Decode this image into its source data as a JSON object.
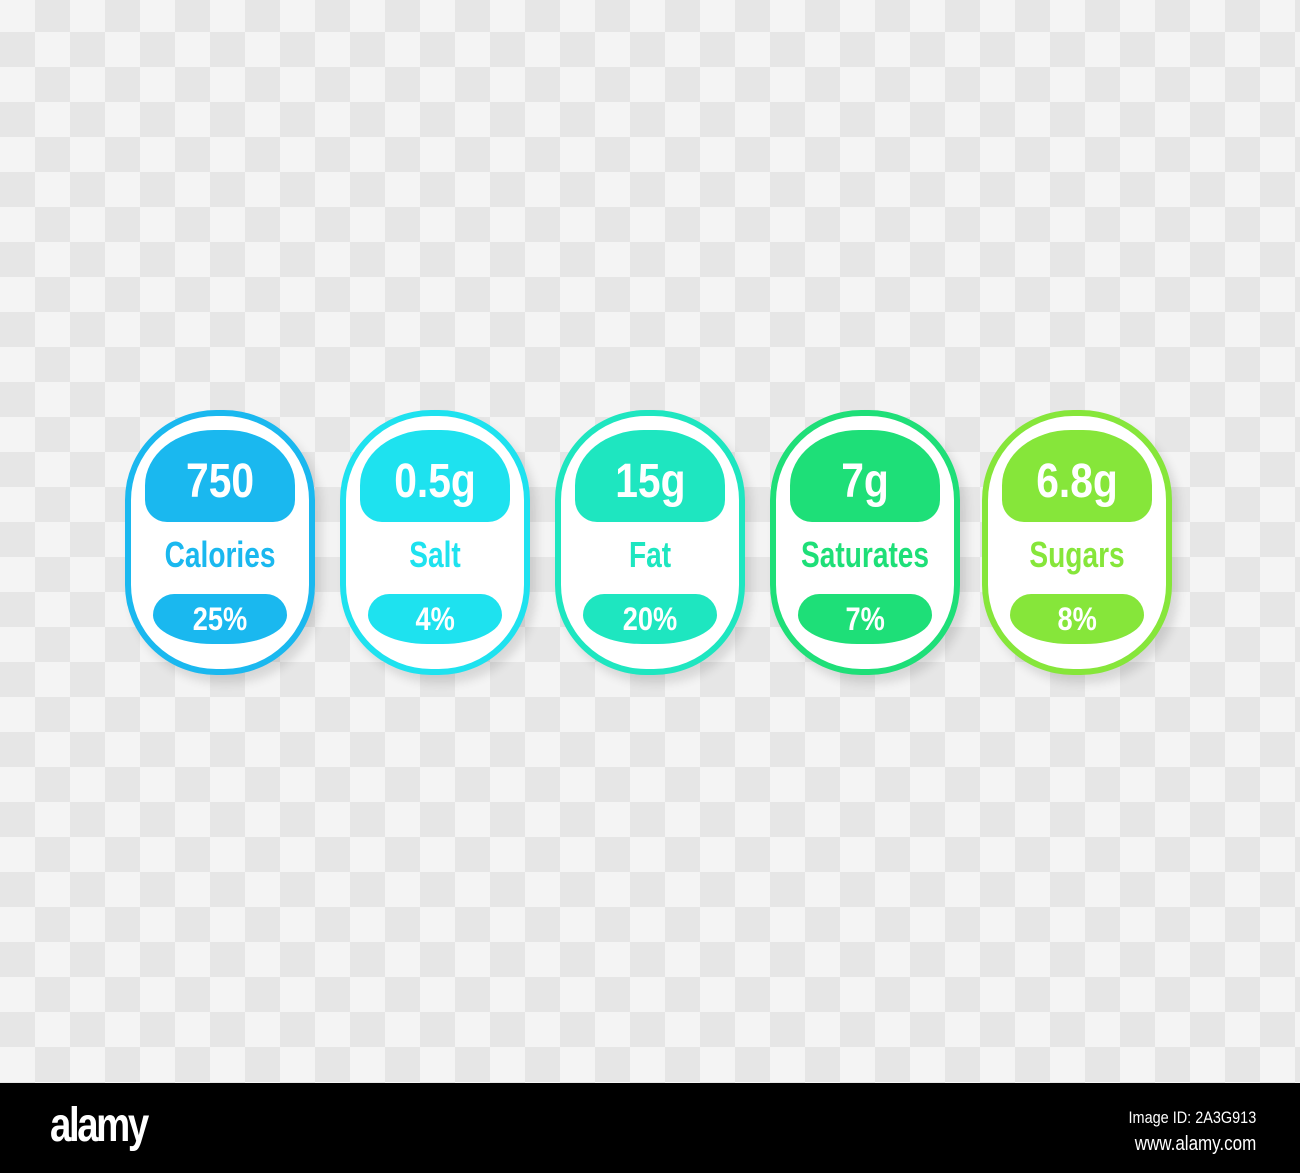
{
  "labels": [
    {
      "value": "750",
      "name": "Calories",
      "percent": "25%",
      "color": "#1ab8ef"
    },
    {
      "value": "0.5g",
      "name": "Salt",
      "percent": "4%",
      "color": "#1ee2ef"
    },
    {
      "value": "15g",
      "name": "Fat",
      "percent": "20%",
      "color": "#1ee6c0"
    },
    {
      "value": "7g",
      "name": "Saturates",
      "percent": "7%",
      "color": "#1edf78"
    },
    {
      "value": "6.8g",
      "name": "Sugars",
      "percent": "8%",
      "color": "#86e63a"
    }
  ],
  "footer": {
    "logo": "alamy",
    "image_id": "Image ID: 2A3G913",
    "url": "www.alamy.com"
  }
}
